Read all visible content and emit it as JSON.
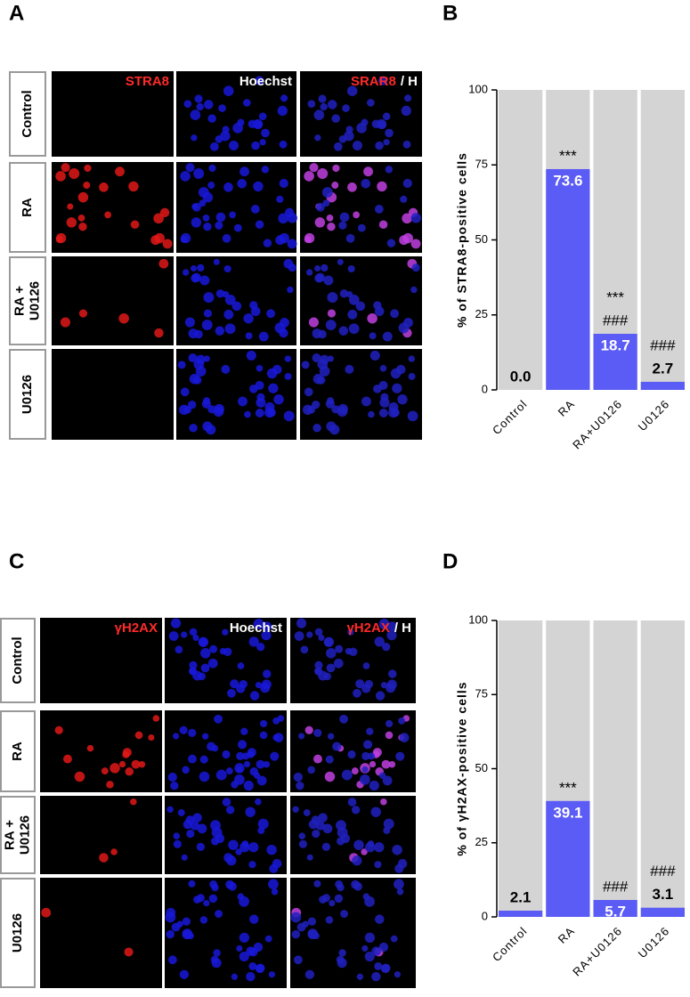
{
  "panels": [
    {
      "label": "A",
      "columns": [
        [
          {
            "text": "STRA8",
            "color": "#ff2a2a"
          }
        ],
        [
          {
            "text": "Hoechst",
            "color": "#ffffff"
          }
        ],
        [
          {
            "text": "SRAR8",
            "color": "#ff2a2a"
          },
          {
            "text": "/ H",
            "color": "#ffffff"
          }
        ]
      ],
      "rows": [
        [
          "Control"
        ],
        [
          "RA"
        ],
        [
          "RA +",
          "U0126"
        ],
        [
          "U0126"
        ]
      ]
    },
    {
      "label": "C",
      "columns": [
        [
          {
            "text": "γH2AX",
            "color": "#ff2a2a"
          }
        ],
        [
          {
            "text": "Hoechst",
            "color": "#ffffff"
          }
        ],
        [
          {
            "text": "γH2AX",
            "color": "#ff2a2a"
          },
          {
            "text": "/ H",
            "color": "#ffffff"
          }
        ]
      ],
      "rows": [
        [
          "Control"
        ],
        [
          "RA"
        ],
        [
          "RA +",
          "U0126"
        ],
        [
          "U0126"
        ]
      ]
    }
  ],
  "chart_data": [
    {
      "type": "bar",
      "panel_label": "B",
      "ylabel": "% of STRA8-positive cells",
      "categories": [
        "Control",
        "RA",
        "RA+U0126",
        "U0126"
      ],
      "values": [
        0,
        73.6,
        18.7,
        2.7
      ],
      "value_labels": [
        "0.0",
        "73.6",
        "18.7",
        "2.7"
      ],
      "significance": [
        null,
        [
          "***"
        ],
        [
          "***",
          "###"
        ],
        [
          "###"
        ]
      ],
      "color": "#5b5bf5",
      "background_color": "#d4d4d4",
      "ylim": [
        0,
        100
      ],
      "yticks": [
        0,
        25,
        50,
        75,
        100
      ]
    },
    {
      "type": "bar",
      "panel_label": "D",
      "ylabel": "% of γH2AX-positive cells",
      "categories": [
        "Control",
        "RA",
        "RA+U0126",
        "U0126"
      ],
      "values": [
        2.1,
        39.1,
        5.7,
        3.1
      ],
      "value_labels": [
        "2.1",
        "39.1",
        "5.7",
        "3.1"
      ],
      "significance": [
        null,
        [
          "***"
        ],
        [
          "###"
        ],
        [
          "###"
        ]
      ],
      "color": "#5b5bf5",
      "background_color": "#d4d4d4",
      "ylim": [
        0,
        100
      ],
      "yticks": [
        0,
        25,
        50,
        75,
        100
      ]
    }
  ]
}
